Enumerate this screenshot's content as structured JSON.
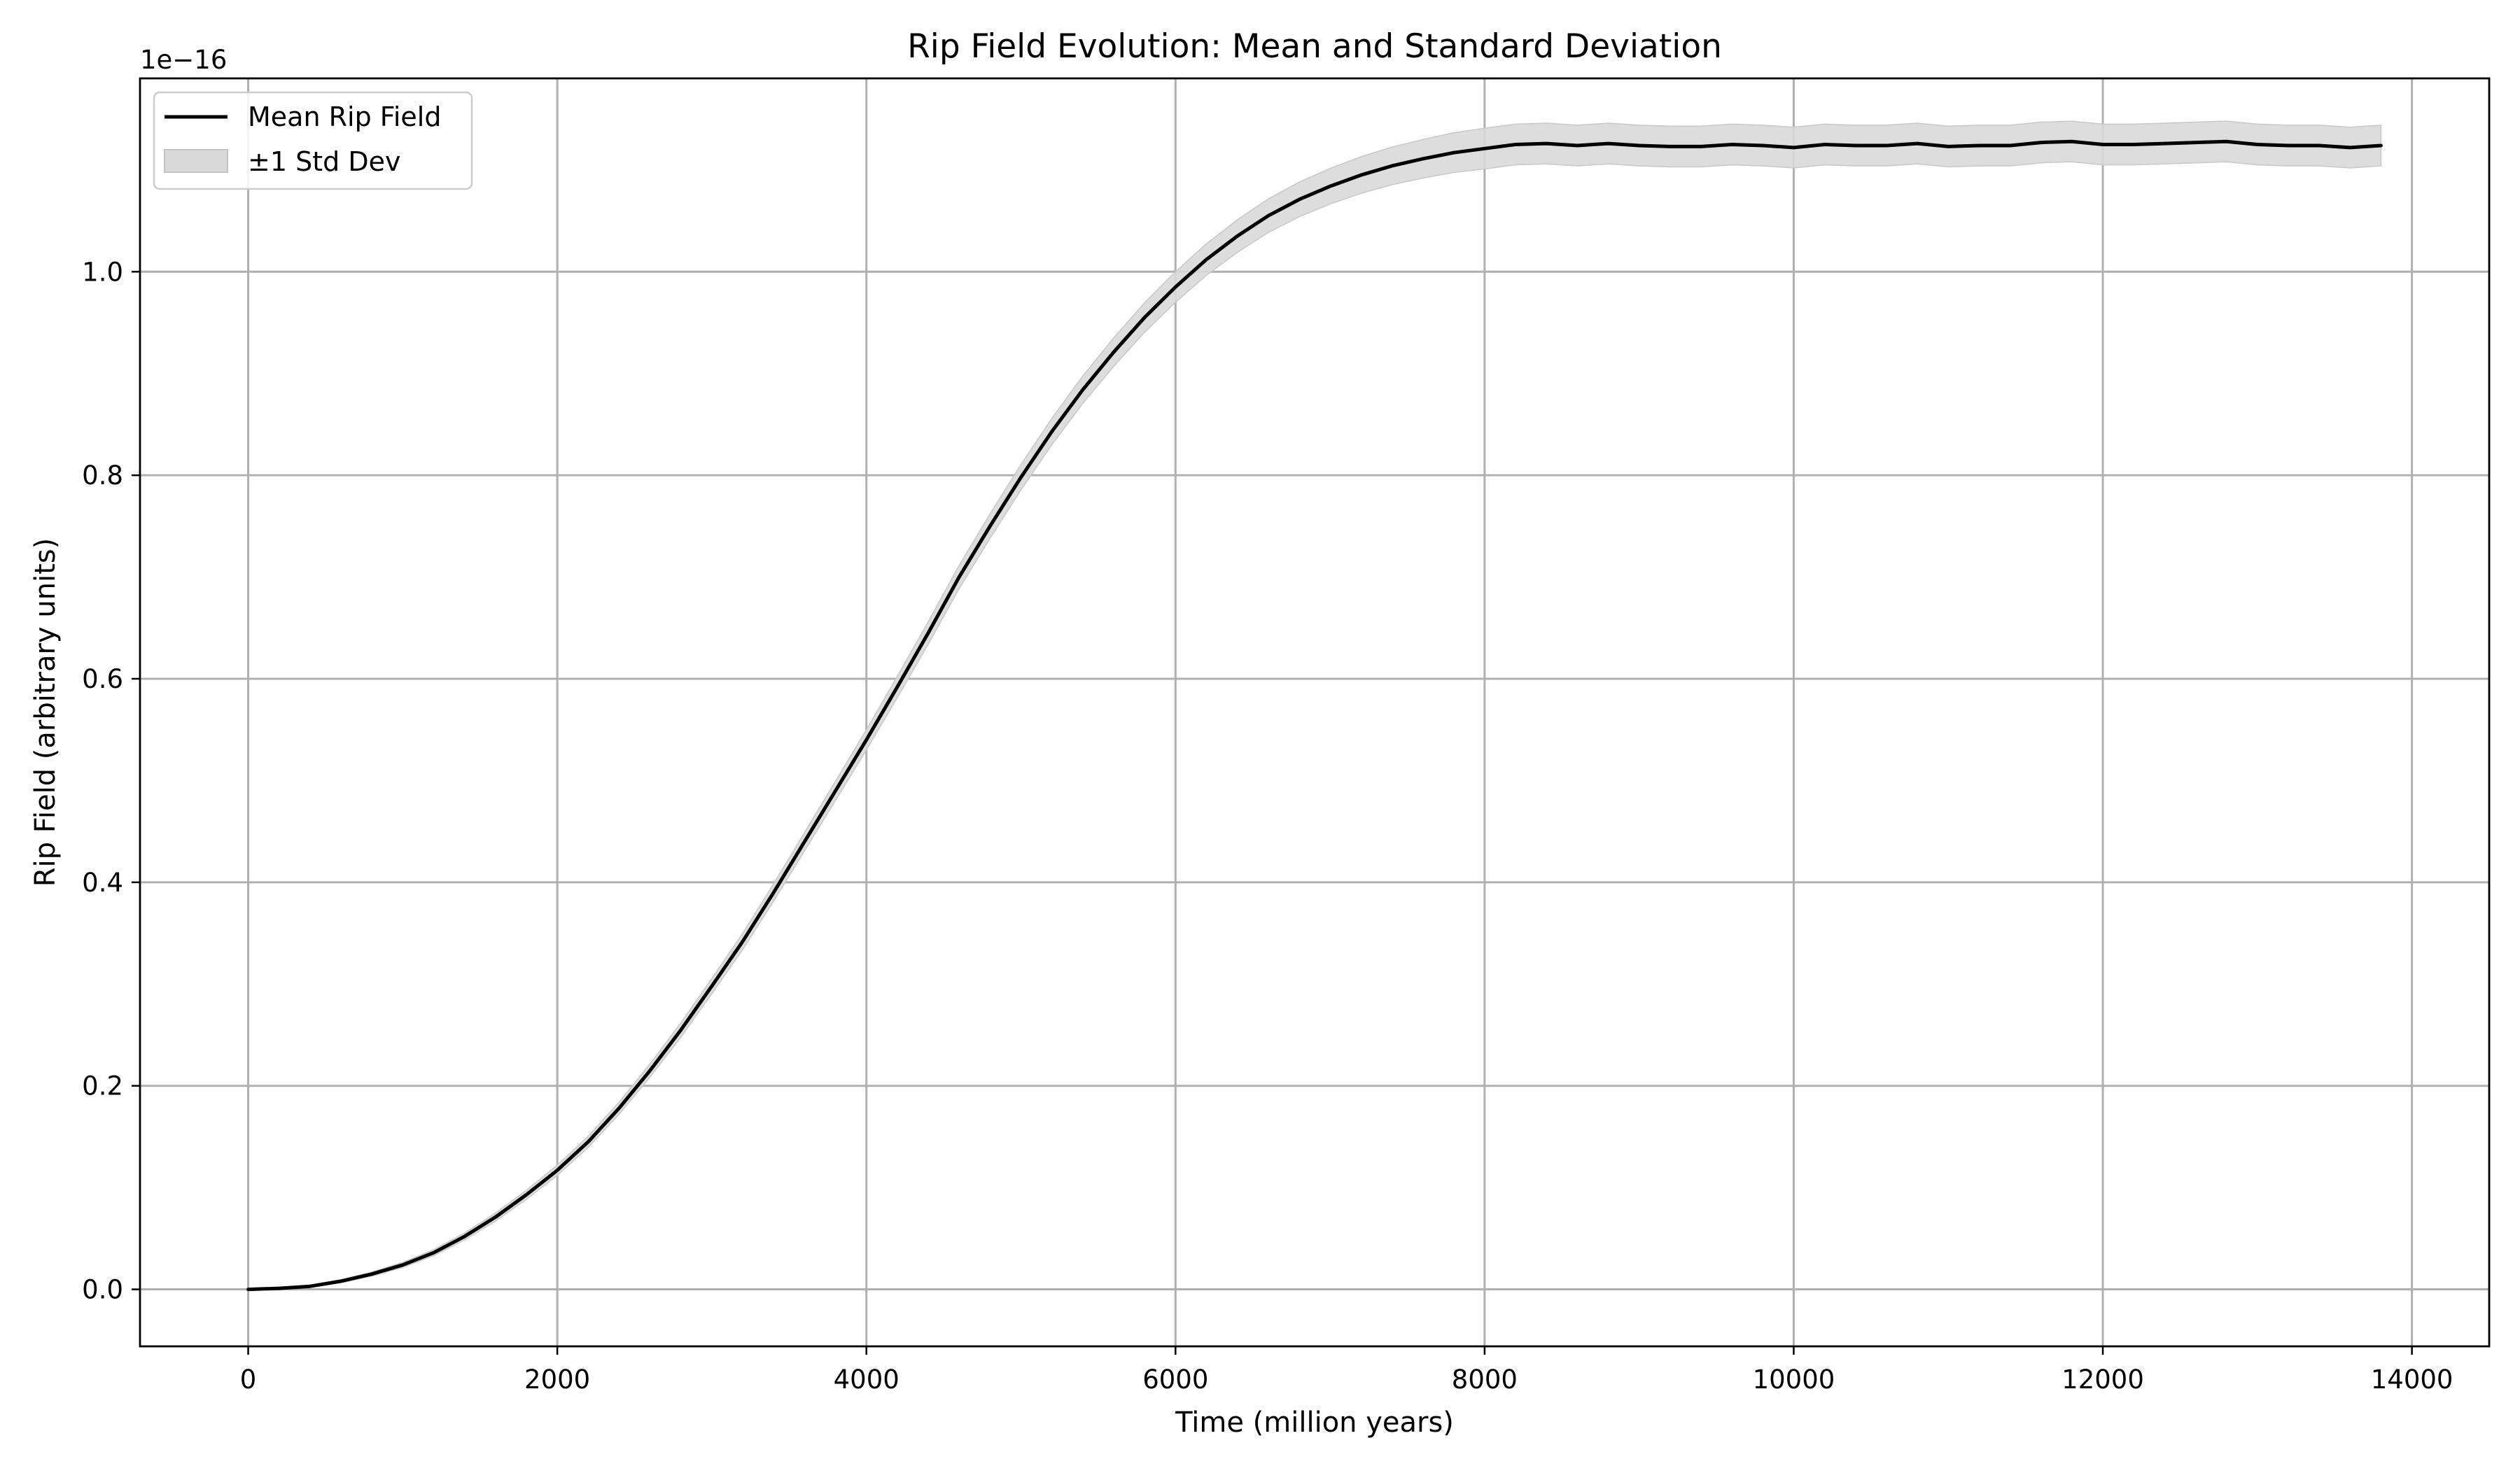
{
  "chart_data": {
    "type": "line",
    "title": "Rip Field Evolution: Mean and Standard Deviation",
    "xlabel": "Time (million years)",
    "ylabel": "Rip Field (arbitrary units)",
    "y_offset_label": "1e−16",
    "y_scale_factor": 1e-16,
    "xlim": [
      -700,
      14500
    ],
    "ylim": [
      -0.056,
      1.19
    ],
    "x_ticks": [
      0,
      2000,
      4000,
      6000,
      8000,
      10000,
      12000,
      14000
    ],
    "x_tick_labels": [
      "0",
      "2000",
      "4000",
      "6000",
      "8000",
      "10000",
      "12000",
      "14000"
    ],
    "y_ticks": [
      0.0,
      0.2,
      0.4,
      0.6,
      0.8,
      1.0
    ],
    "y_tick_labels": [
      "0.0",
      "0.2",
      "0.4",
      "0.6",
      "0.8",
      "1.0"
    ],
    "grid": true,
    "legend_position": "top-left",
    "legend": [
      {
        "label": "Mean Rip Field",
        "kind": "line",
        "color": "#000000"
      },
      {
        "label": "±1 Std Dev",
        "kind": "band",
        "color": "#d9d9d9"
      }
    ],
    "series": [
      {
        "name": "Mean Rip Field",
        "color": "#000000",
        "x": [
          0,
          200,
          400,
          600,
          800,
          1000,
          1200,
          1400,
          1600,
          1800,
          2000,
          2200,
          2400,
          2600,
          2800,
          3000,
          3200,
          3400,
          3600,
          3800,
          4000,
          4200,
          4400,
          4600,
          4800,
          5000,
          5200,
          5400,
          5600,
          5800,
          6000,
          6200,
          6400,
          6600,
          6800,
          7000,
          7200,
          7400,
          7600,
          7800,
          8000,
          8200,
          8400,
          8600,
          8800,
          9000,
          9200,
          9400,
          9600,
          9800,
          10000,
          10200,
          10400,
          10600,
          10800,
          11000,
          11200,
          11400,
          11600,
          11800,
          12000,
          12200,
          12400,
          12600,
          12800,
          13000,
          13200,
          13400,
          13600,
          13800
        ],
        "values": [
          0.0,
          0.001,
          0.003,
          0.008,
          0.015,
          0.024,
          0.036,
          0.052,
          0.071,
          0.093,
          0.117,
          0.145,
          0.178,
          0.215,
          0.255,
          0.298,
          0.342,
          0.39,
          0.44,
          0.49,
          0.54,
          0.592,
          0.645,
          0.7,
          0.75,
          0.798,
          0.843,
          0.884,
          0.921,
          0.955,
          0.985,
          1.012,
          1.035,
          1.055,
          1.071,
          1.084,
          1.095,
          1.104,
          1.111,
          1.117,
          1.121,
          1.125,
          1.126,
          1.124,
          1.126,
          1.124,
          1.123,
          1.123,
          1.125,
          1.124,
          1.122,
          1.125,
          1.124,
          1.124,
          1.126,
          1.123,
          1.124,
          1.124,
          1.127,
          1.128,
          1.125,
          1.125,
          1.126,
          1.127,
          1.128,
          1.125,
          1.124,
          1.124,
          1.122,
          1.124
        ]
      },
      {
        "name": "±1 Std Dev",
        "type": "band",
        "color": "#d9d9d9",
        "std_values": [
          0.0,
          0.0005,
          0.001,
          0.0015,
          0.002,
          0.0025,
          0.003,
          0.0035,
          0.004,
          0.0045,
          0.005,
          0.0055,
          0.006,
          0.0065,
          0.007,
          0.0075,
          0.008,
          0.0085,
          0.009,
          0.0095,
          0.01,
          0.0105,
          0.011,
          0.0115,
          0.012,
          0.0125,
          0.013,
          0.0135,
          0.014,
          0.0145,
          0.015,
          0.0155,
          0.016,
          0.0165,
          0.017,
          0.0175,
          0.018,
          0.0185,
          0.019,
          0.0195,
          0.02,
          0.02,
          0.02,
          0.02,
          0.02,
          0.02,
          0.02,
          0.02,
          0.02,
          0.02,
          0.02,
          0.02,
          0.02,
          0.02,
          0.02,
          0.02,
          0.02,
          0.02,
          0.02,
          0.02,
          0.02,
          0.02,
          0.02,
          0.02,
          0.02,
          0.02,
          0.02,
          0.02,
          0.02,
          0.02
        ]
      }
    ]
  }
}
